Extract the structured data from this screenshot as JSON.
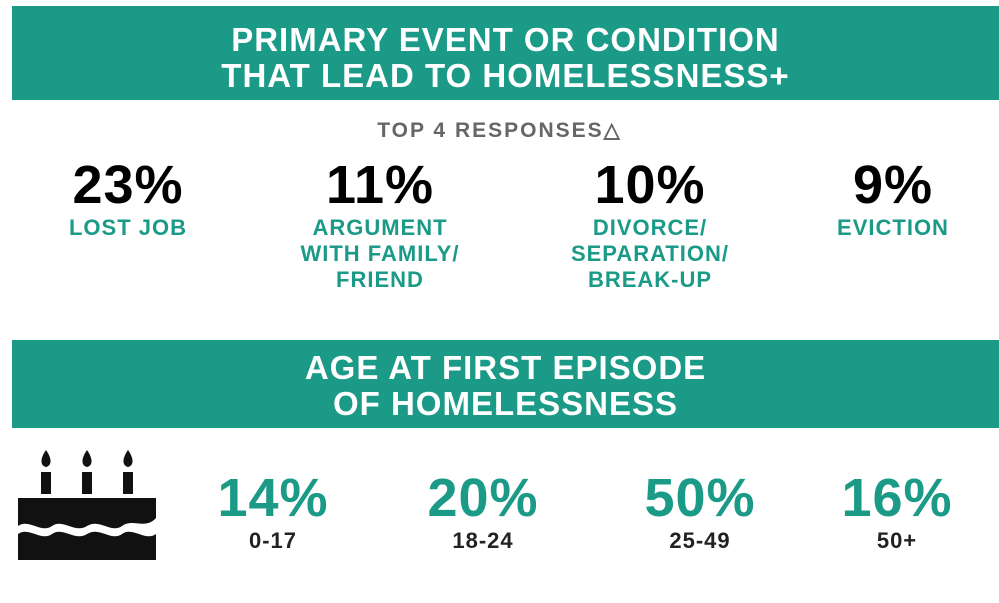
{
  "section1": {
    "title_lines": [
      "PRIMARY EVENT OR CONDITION",
      "THAT LEAD TO HOMELESSNESS+"
    ],
    "subtitle": "TOP 4 RESPONSES△",
    "items": [
      {
        "value": "23%",
        "label_lines": [
          "LOST JOB"
        ]
      },
      {
        "value": "11%",
        "label_lines": [
          "ARGUMENT",
          "WITH FAMILY/",
          "FRIEND"
        ]
      },
      {
        "value": "10%",
        "label_lines": [
          "DIVORCE/",
          "SEPARATION/",
          "BREAK-UP"
        ]
      },
      {
        "value": "9%",
        "label_lines": [
          "EVICTION"
        ]
      }
    ]
  },
  "section2": {
    "title_lines": [
      "AGE AT FIRST EPISODE",
      "OF HOMELESSNESS"
    ],
    "items": [
      {
        "value": "14%",
        "label": "0-17"
      },
      {
        "value": "20%",
        "label": "18-24"
      },
      {
        "value": "50%",
        "label": "25-49"
      },
      {
        "value": "16%",
        "label": "50+"
      }
    ]
  }
}
